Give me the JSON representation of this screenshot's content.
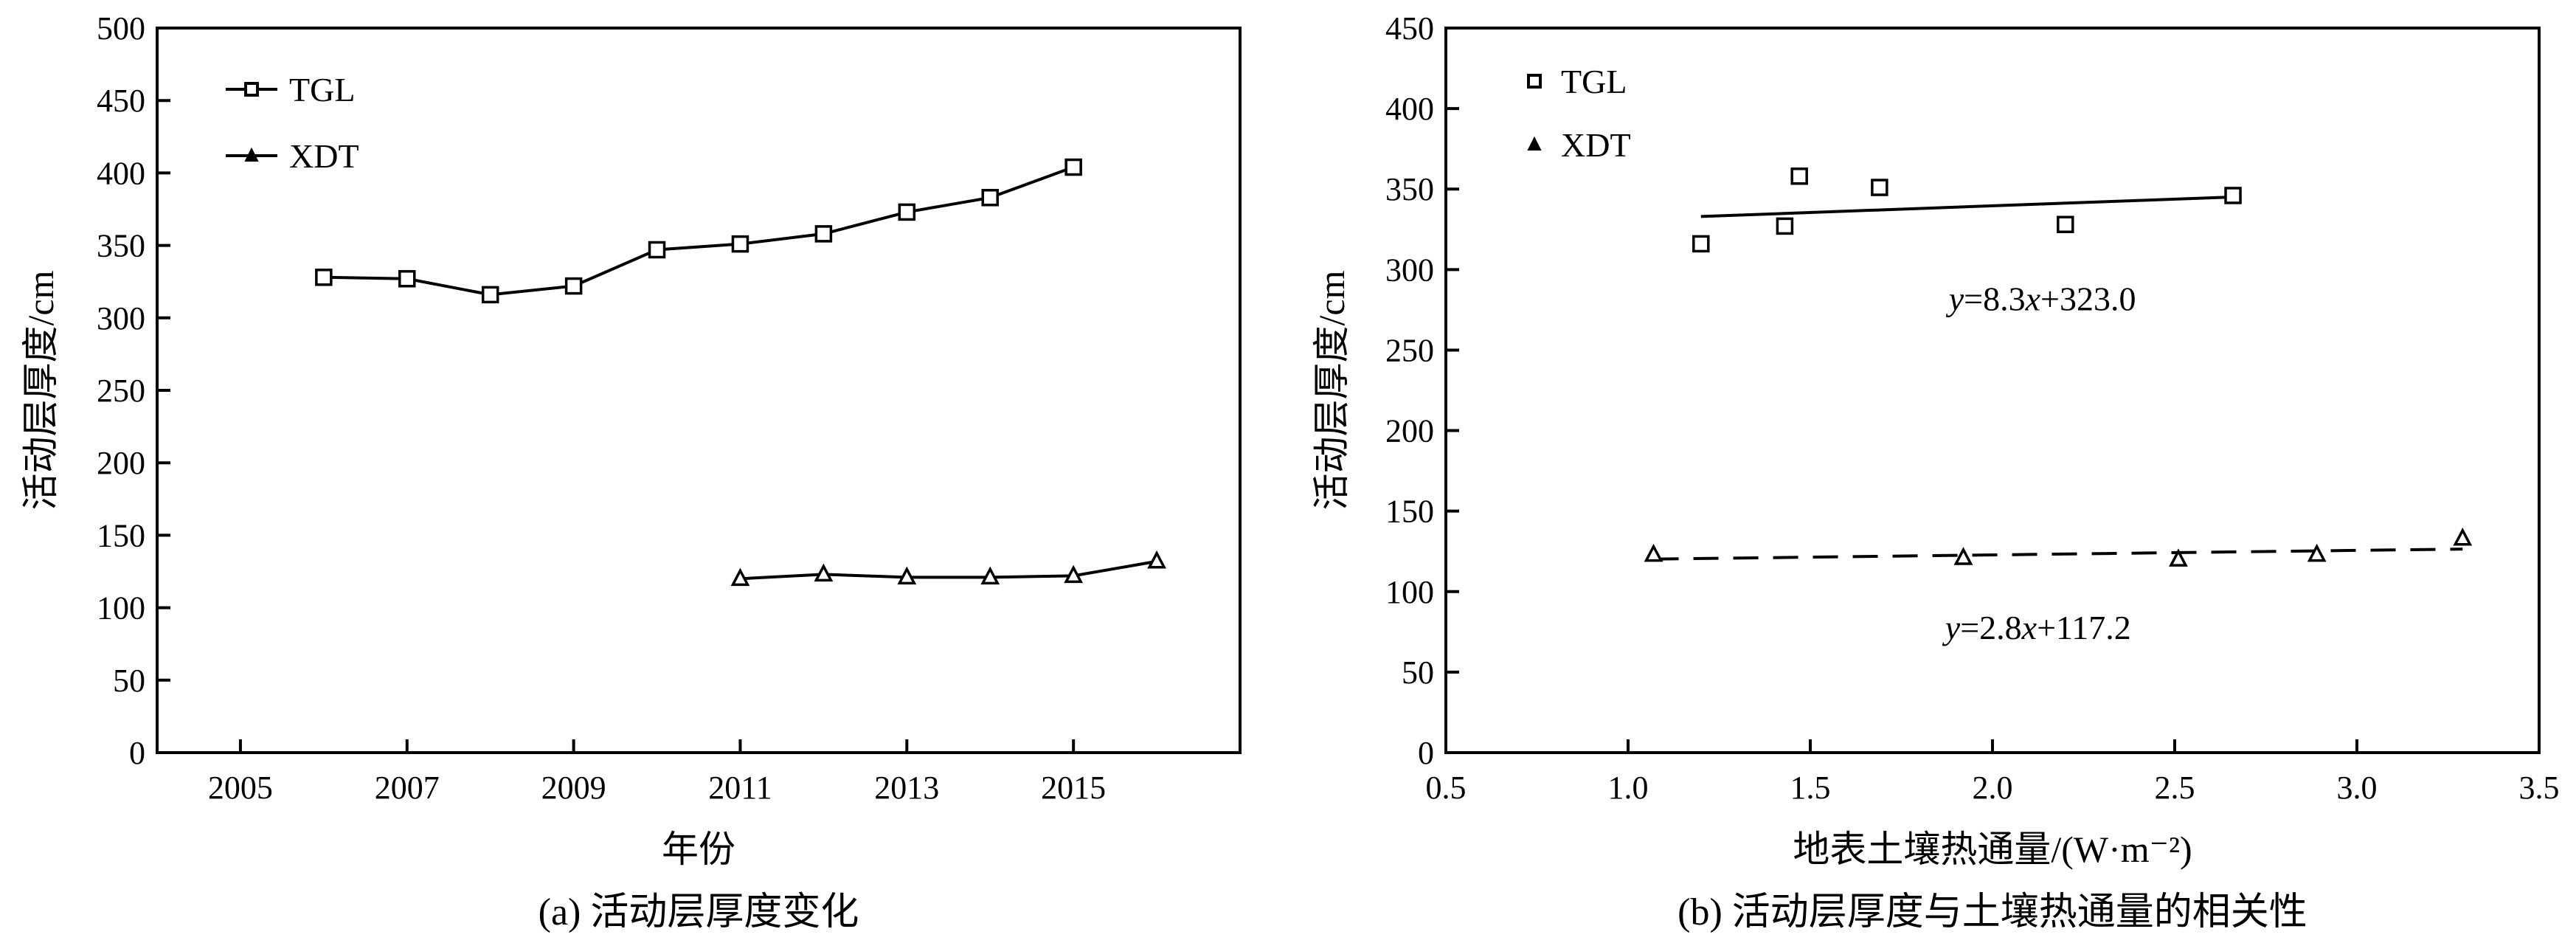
{
  "chart_data": [
    {
      "type": "line",
      "caption": "(a) 活动层厚度变化",
      "xlabel": "年份",
      "ylabel": "活动层厚度/cm",
      "xlim": [
        2004,
        2017
      ],
      "ylim": [
        0,
        500
      ],
      "xticks": [
        2005,
        2007,
        2009,
        2011,
        2013,
        2015
      ],
      "yticks": [
        0,
        50,
        100,
        150,
        200,
        250,
        300,
        350,
        400,
        450,
        500
      ],
      "grid": false,
      "legend": "top-left",
      "series": [
        {
          "name": "TGL",
          "marker": "square-open",
          "x": [
            2006,
            2007,
            2008,
            2009,
            2010,
            2011,
            2012,
            2013,
            2014,
            2015
          ],
          "y": [
            328,
            327,
            316,
            322,
            347,
            351,
            358,
            373,
            383,
            404
          ]
        },
        {
          "name": "XDT",
          "marker": "triangle-open",
          "x": [
            2011,
            2012,
            2013,
            2014,
            2015,
            2016
          ],
          "y": [
            120,
            123,
            121,
            121,
            122,
            132
          ]
        }
      ]
    },
    {
      "type": "scatter",
      "caption": "(b) 活动层厚度与土壤热通量的相关性",
      "xlabel": "地表土壤热通量/(W·m⁻²)",
      "ylabel": "活动层厚度/cm",
      "xlim": [
        0.5,
        3.5
      ],
      "ylim": [
        0,
        450
      ],
      "xticks": [
        0.5,
        1.0,
        1.5,
        2.0,
        2.5,
        3.0,
        3.5
      ],
      "yticks": [
        0,
        50,
        100,
        150,
        200,
        250,
        300,
        350,
        400,
        450
      ],
      "grid": false,
      "legend": "top-left",
      "series": [
        {
          "name": "TGL",
          "marker": "square-open",
          "x": [
            1.2,
            1.43,
            1.47,
            1.69,
            2.2,
            2.66
          ],
          "y": [
            316,
            327,
            358,
            351,
            328,
            346
          ],
          "fit": {
            "slope": 8.3,
            "intercept": 323.0,
            "x_range": [
              1.2,
              2.66
            ],
            "style": "solid"
          }
        },
        {
          "name": "XDT",
          "marker": "triangle-open",
          "x": [
            1.07,
            1.92,
            2.51,
            2.89,
            3.29
          ],
          "y": [
            123,
            121,
            120,
            123,
            133
          ],
          "fit": {
            "slope": 2.8,
            "intercept": 117.2,
            "x_range": [
              1.07,
              3.29
            ],
            "style": "dashed"
          }
        }
      ],
      "annotations": [
        {
          "var": "y",
          "rest": "=8.3",
          "var2": "x",
          "rest2": "+323.0",
          "at_x": 1.88,
          "at_y": 282
        },
        {
          "var": "y",
          "rest": "=2.8",
          "var2": "x",
          "rest2": "+117.2",
          "at_x": 1.87,
          "at_y": 78
        }
      ]
    }
  ]
}
